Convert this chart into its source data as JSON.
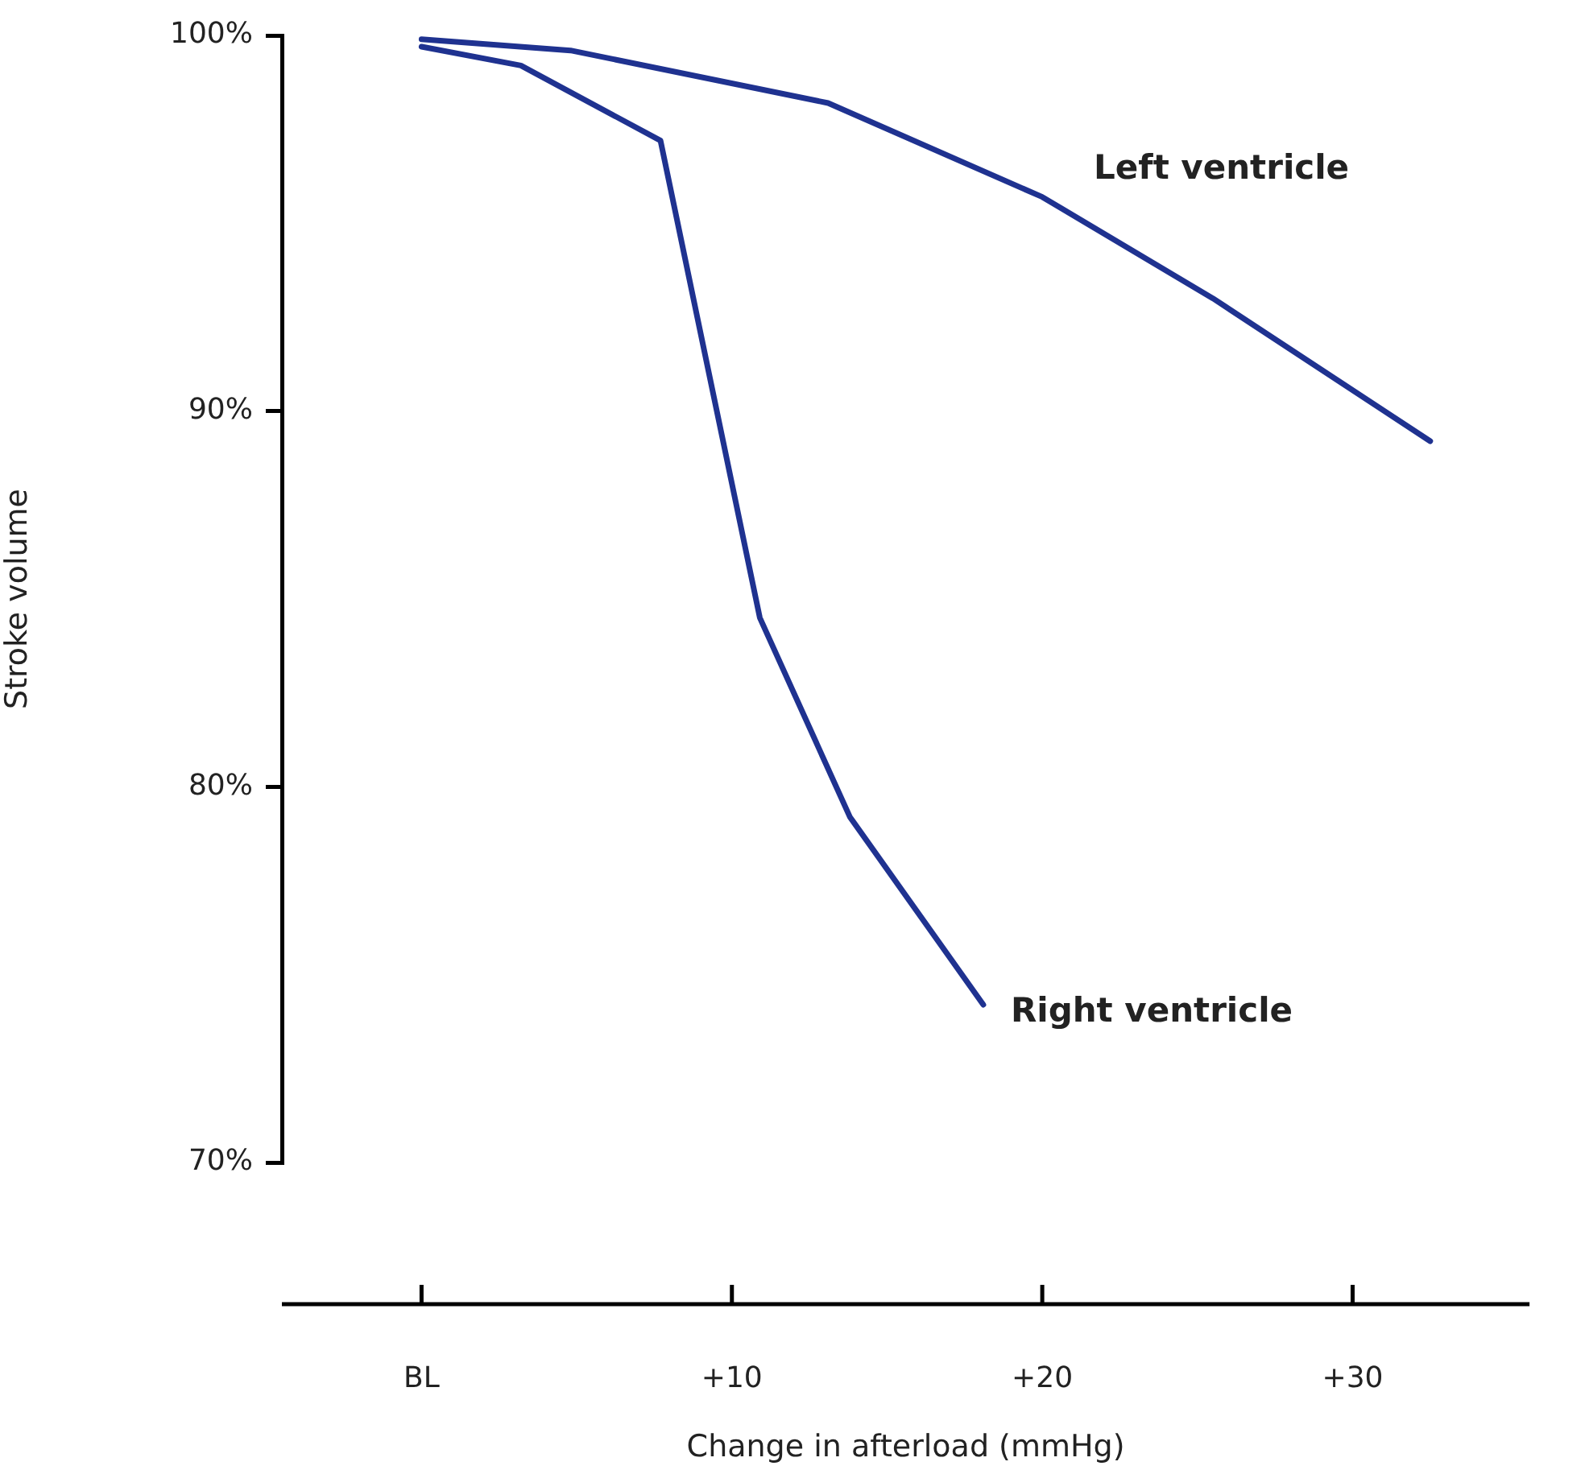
{
  "chart_data": {
    "type": "line",
    "xlabel": "Change in afterload (mmHg)",
    "ylabel": "Stroke volume",
    "xlim": [
      -4.5,
      35.7
    ],
    "ylim": [
      70,
      100
    ],
    "xticks": [
      {
        "value": 0,
        "label": "BL"
      },
      {
        "value": 10,
        "label": "+10"
      },
      {
        "value": 20,
        "label": "+20"
      },
      {
        "value": 30,
        "label": "+30"
      }
    ],
    "yticks": [
      {
        "value": 70,
        "label": "70%"
      },
      {
        "value": 80,
        "label": "80%"
      },
      {
        "value": 90,
        "label": "90%"
      },
      {
        "value": 100,
        "label": "100%"
      }
    ],
    "legend": false,
    "grid": false,
    "marker": "none",
    "line_style": "solid",
    "series": [
      {
        "name": "Left ventricle",
        "color": "#1f3290",
        "x": [
          0,
          4.8,
          13.1,
          20,
          25.5,
          32.5
        ],
        "values": [
          99.9,
          99.6,
          98.2,
          95.7,
          93.0,
          89.2
        ]
      },
      {
        "name": "Right ventricle",
        "color": "#1f3290",
        "x": [
          0,
          3.2,
          7.7,
          10.9,
          13.8,
          18.1
        ],
        "values": [
          99.7,
          99.2,
          97.2,
          84.5,
          79.2,
          74.2
        ]
      }
    ]
  }
}
